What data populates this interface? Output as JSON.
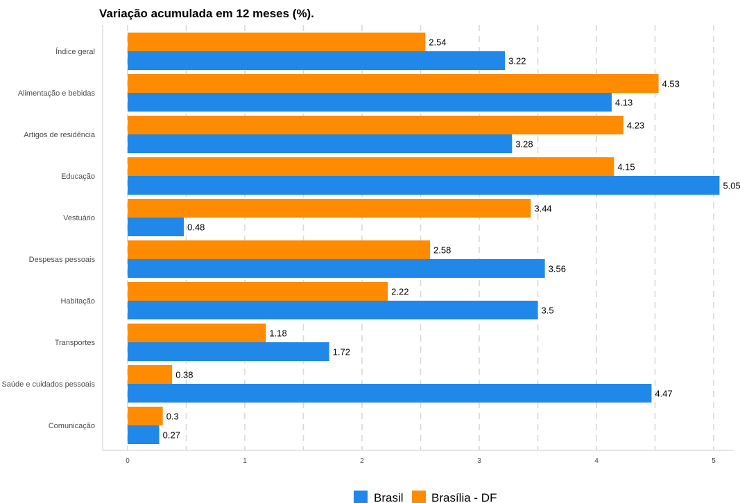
{
  "colors": {
    "brasil": "#1f88e8",
    "df": "#ff8c00",
    "grid": "#d9d9d9",
    "axis": "#cccccc"
  },
  "chart_data": {
    "type": "bar",
    "orientation": "horizontal",
    "title": "Variação acumulada em 12 meses (%).",
    "xlabel": "",
    "ylabel": "",
    "xlim": [
      0,
      5.1
    ],
    "x_ticks": [
      "0",
      "1",
      "2",
      "3",
      "4",
      "5"
    ],
    "grid": "vertical dashed",
    "legend_position": "bottom",
    "categories": [
      "Índice geral",
      "Alimentação e bebidas",
      "Artigos de residência",
      "Educação",
      "Vestuário",
      "Despesas pessoais",
      "Habitação",
      "Transportes",
      "Saúde e cuidados pessoais",
      "Comunicação"
    ],
    "series": [
      {
        "name": "Brasília - DF",
        "color": "#ff8c00",
        "values": [
          2.54,
          4.53,
          4.23,
          4.15,
          3.44,
          2.58,
          2.22,
          1.18,
          0.38,
          0.3
        ],
        "labels": [
          "2.54",
          "4.53",
          "4.23",
          "4.15",
          "3.44",
          "2.58",
          "2.22",
          "1.18",
          "0.38",
          "0.3"
        ]
      },
      {
        "name": "Brasil",
        "color": "#1f88e8",
        "values": [
          3.22,
          4.13,
          3.28,
          5.05,
          0.48,
          3.56,
          3.5,
          1.72,
          4.47,
          0.27
        ],
        "labels": [
          "3.22",
          "4.13",
          "3.28",
          "5.05",
          "0.48",
          "3.56",
          "3.5",
          "1.72",
          "4.47",
          "0.27"
        ]
      }
    ],
    "legend": [
      {
        "name": "Brasil",
        "color": "#1f88e8"
      },
      {
        "name": "Brasília - DF",
        "color": "#ff8c00"
      }
    ]
  }
}
